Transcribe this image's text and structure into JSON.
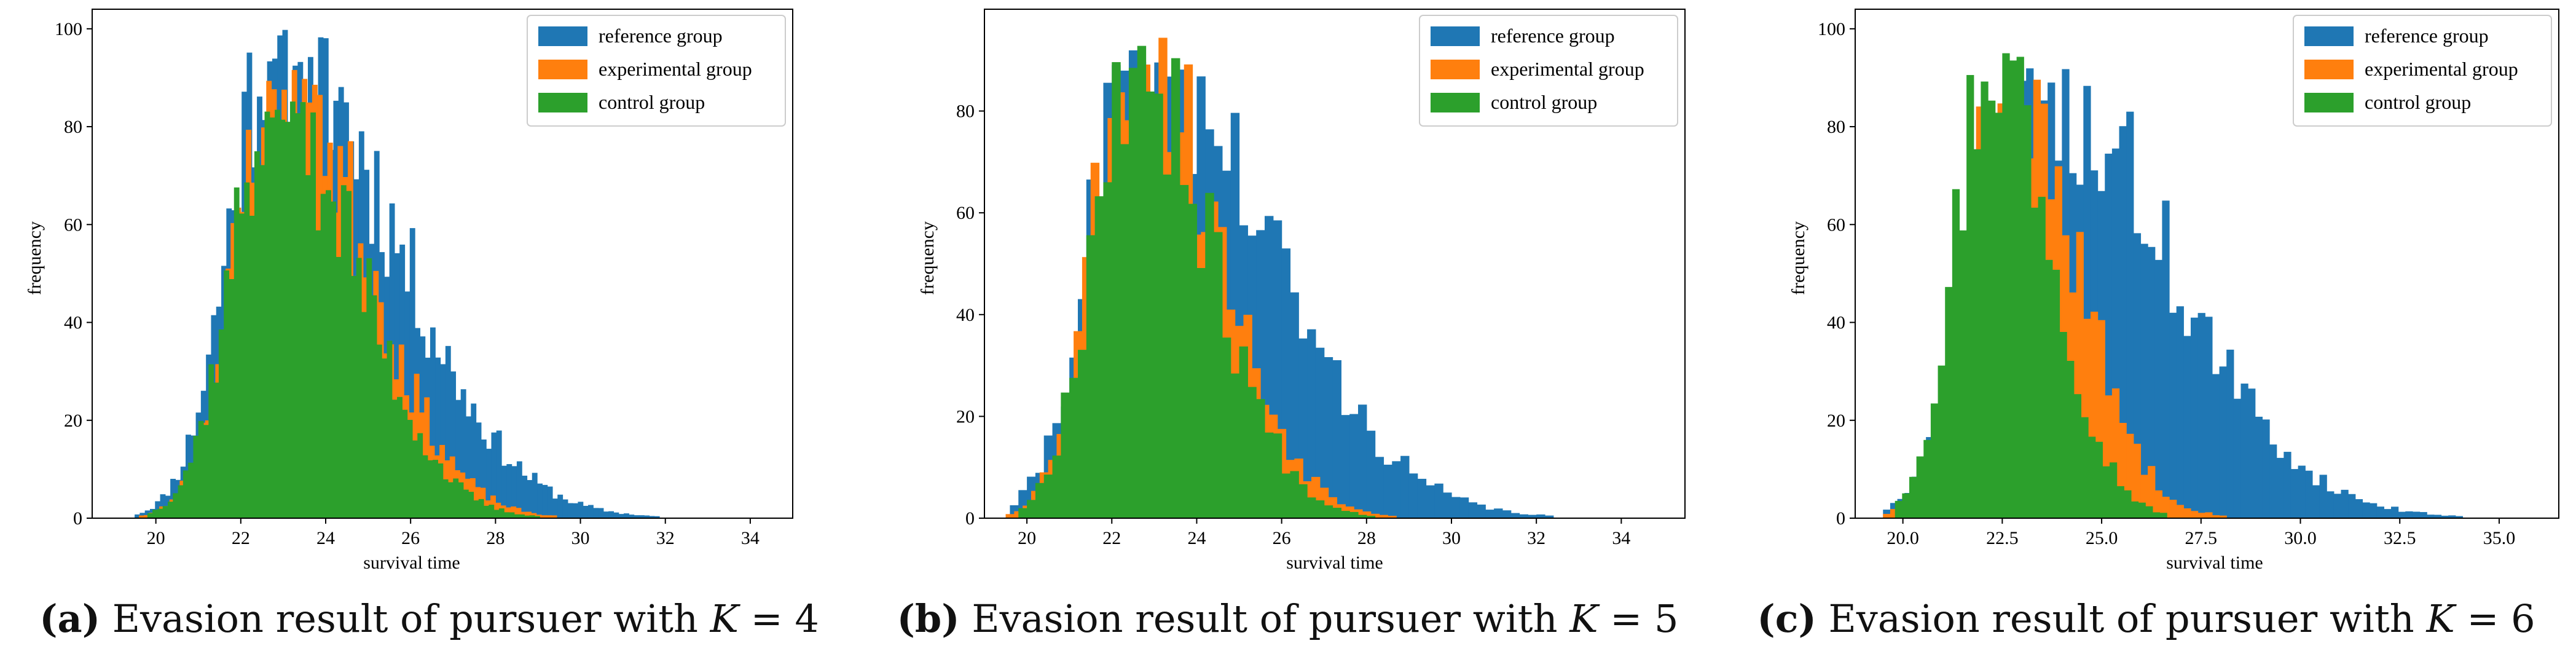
{
  "colors": {
    "reference": "#1f77b4",
    "experimental": "#ff7f0e",
    "control": "#2ca02c"
  },
  "chart_data": [
    {
      "type": "histogram",
      "xlabel": "survival time",
      "ylabel": "frequency",
      "xlim": [
        18.5,
        35.0
      ],
      "ylim": [
        0,
        104
      ],
      "xticks": [
        20,
        22,
        24,
        26,
        28,
        30,
        32,
        34
      ],
      "xtick_labels": [
        "20",
        "22",
        "24",
        "26",
        "28",
        "30",
        "32",
        "34"
      ],
      "yticks": [
        0,
        20,
        40,
        60,
        80,
        100
      ],
      "ytick_labels": [
        "0",
        "20",
        "40",
        "60",
        "80",
        "100"
      ],
      "legend": [
        "reference group",
        "experimental group",
        "control group"
      ],
      "legend_location": "top-right",
      "bin_width": 0.12,
      "series": [
        {
          "name": "reference group",
          "key": "reference",
          "min": 19.5,
          "max": 34.5,
          "peak": 22.8,
          "peak_height": 100,
          "sig_left": 1.05,
          "sig_right": 2.7,
          "seed": 11
        },
        {
          "name": "experimental group",
          "key": "experimental",
          "min": 19.0,
          "max": 31.0,
          "peak": 22.9,
          "peak_height": 92,
          "sig_left": 1.0,
          "sig_right": 2.0,
          "seed": 23
        },
        {
          "name": "control group",
          "key": "control",
          "min": 19.8,
          "max": 30.0,
          "peak": 22.8,
          "peak_height": 87,
          "sig_left": 1.0,
          "sig_right": 1.9,
          "seed": 37
        }
      ],
      "caption": {
        "label": "(a)",
        "text": "Evasion result of pursuer with",
        "k": "K",
        "eq": "= 4"
      }
    },
    {
      "type": "histogram",
      "xlabel": "survival time",
      "ylabel": "frequency",
      "xlim": [
        19.0,
        35.5
      ],
      "ylim": [
        0,
        100
      ],
      "xticks": [
        20,
        22,
        24,
        26,
        28,
        30,
        32,
        34
      ],
      "xtick_labels": [
        "20",
        "22",
        "24",
        "26",
        "28",
        "30",
        "32",
        "34"
      ],
      "yticks": [
        0,
        20,
        40,
        60,
        80
      ],
      "ytick_labels": [
        "0",
        "20",
        "40",
        "60",
        "80"
      ],
      "legend": [
        "reference group",
        "experimental group",
        "control group"
      ],
      "legend_location": "top-right",
      "bin_width": 0.2,
      "series": [
        {
          "name": "reference group",
          "key": "reference",
          "min": 19.6,
          "max": 34.8,
          "peak": 22.6,
          "peak_height": 92,
          "sig_left": 1.1,
          "sig_right": 3.0,
          "seed": 41
        },
        {
          "name": "experimental group",
          "key": "experimental",
          "min": 19.5,
          "max": 28.5,
          "peak": 22.5,
          "peak_height": 95,
          "sig_left": 0.95,
          "sig_right": 1.9,
          "seed": 53
        },
        {
          "name": "control group",
          "key": "control",
          "min": 19.8,
          "max": 28.0,
          "peak": 22.5,
          "peak_height": 93,
          "sig_left": 0.95,
          "sig_right": 1.75,
          "seed": 67
        }
      ],
      "caption": {
        "label": "(b)",
        "text": "Evasion result of pursuer with",
        "k": "K",
        "eq": "= 5"
      }
    },
    {
      "type": "histogram",
      "xlabel": "survival time",
      "ylabel": "frequency",
      "xlim": [
        18.8,
        36.5
      ],
      "ylim": [
        0,
        104
      ],
      "xticks": [
        20.0,
        22.5,
        25.0,
        27.5,
        30.0,
        32.5,
        35.0
      ],
      "xtick_labels": [
        "20.0",
        "22.5",
        "25.0",
        "27.5",
        "30.0",
        "32.5",
        "35.0"
      ],
      "yticks": [
        0,
        20,
        40,
        60,
        80,
        100
      ],
      "ytick_labels": [
        "0",
        "20",
        "40",
        "60",
        "80",
        "100"
      ],
      "legend": [
        "reference group",
        "experimental group",
        "control group"
      ],
      "legend_location": "top-right",
      "bin_width": 0.18,
      "series": [
        {
          "name": "reference group",
          "key": "reference",
          "min": 19.5,
          "max": 35.8,
          "peak": 23.2,
          "peak_height": 92,
          "sig_left": 1.3,
          "sig_right": 3.3,
          "seed": 71
        },
        {
          "name": "experimental group",
          "key": "experimental",
          "min": 19.5,
          "max": 28.0,
          "peak": 22.6,
          "peak_height": 90,
          "sig_left": 1.0,
          "sig_right": 1.7,
          "seed": 83
        },
        {
          "name": "control group",
          "key": "control",
          "min": 19.8,
          "max": 26.5,
          "peak": 22.3,
          "peak_height": 98,
          "sig_left": 0.95,
          "sig_right": 1.4,
          "seed": 97
        }
      ],
      "caption": {
        "label": "(c)",
        "text": "Evasion result of pursuer with",
        "k": "K",
        "eq": "= 6"
      }
    }
  ]
}
